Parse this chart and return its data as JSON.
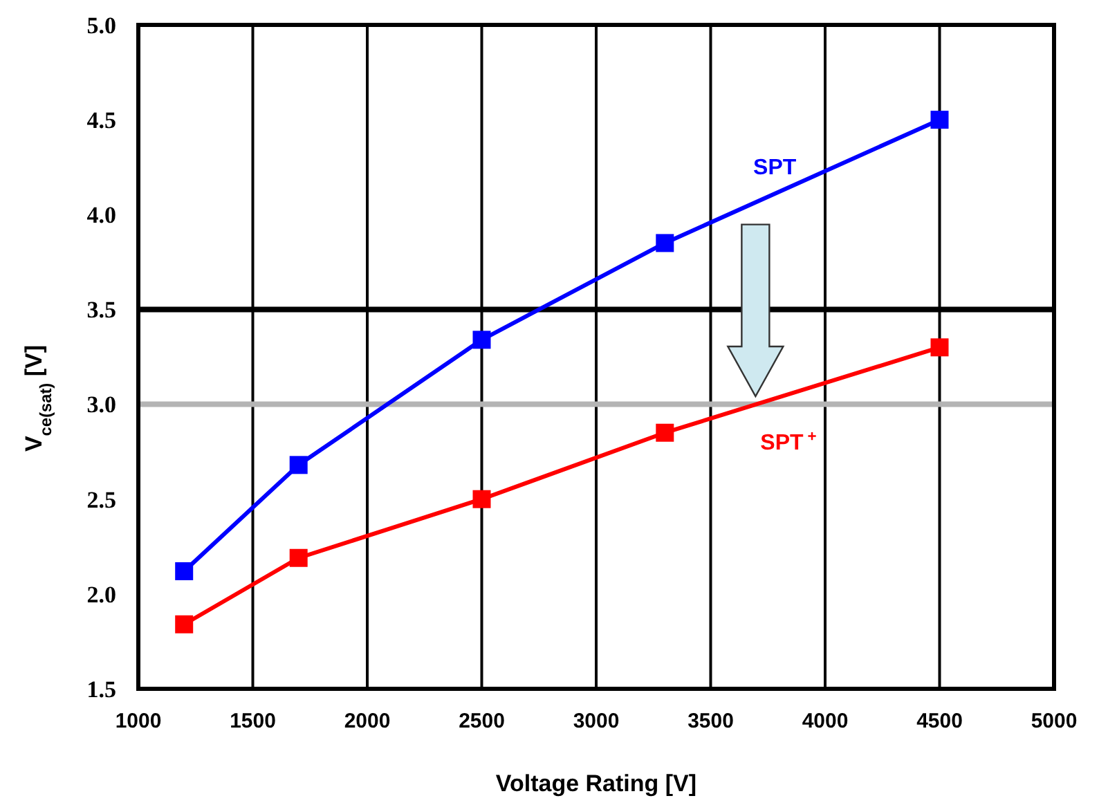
{
  "chart_data": {
    "type": "line",
    "xlabel": "Voltage Rating [V]",
    "ylabel": "V$_{ce(sat)}$ [V]",
    "x": [
      1200,
      1700,
      2500,
      3300,
      4500
    ],
    "series": [
      {
        "name": "SPT",
        "color": "#0000ff",
        "values": [
          2.12,
          2.68,
          3.34,
          3.85,
          4.5
        ]
      },
      {
        "name": "SPT$^{+}$",
        "color": "#ff0000",
        "values": [
          1.84,
          2.19,
          2.5,
          2.85,
          3.3
        ]
      }
    ],
    "xlim": [
      1000,
      5000
    ],
    "xticks": [
      1000,
      1500,
      2000,
      2500,
      3000,
      3500,
      4000,
      4500,
      5000
    ],
    "ylim": [
      1.5,
      5
    ],
    "yticks": [
      {
        "value": 1.5,
        "label": "1.5"
      },
      {
        "value": 2,
        "label": "2.0"
      },
      {
        "value": 2.5,
        "label": "2.5"
      },
      {
        "value": 3,
        "label": "3.0"
      },
      {
        "value": 3.5,
        "label": "3.5"
      },
      {
        "value": 4,
        "label": "4.0"
      },
      {
        "value": 4.5,
        "label": "4.5"
      },
      {
        "value": 5,
        "label": "5.0"
      }
    ],
    "ref_lines": [
      {
        "axis": "y",
        "value": 3.5,
        "color": "#000000"
      },
      {
        "axis": "y",
        "value": 3,
        "color": "#b4b4b4"
      }
    ],
    "grid": "x",
    "marker": "square",
    "line_style": "solid"
  }
}
